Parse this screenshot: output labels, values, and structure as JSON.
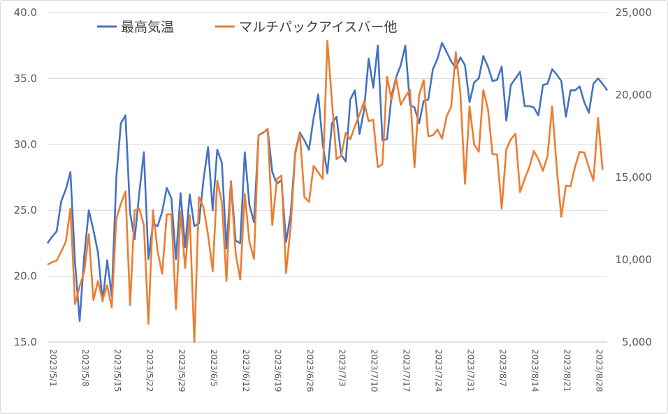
{
  "chart_data": {
    "type": "line",
    "title": "",
    "legend_position": "top",
    "x_dates": [
      "5/1",
      "5/2",
      "5/3",
      "5/4",
      "5/5",
      "5/6",
      "5/7",
      "5/8",
      "5/9",
      "5/10",
      "5/11",
      "5/12",
      "5/13",
      "5/14",
      "5/15",
      "5/16",
      "5/17",
      "5/18",
      "5/19",
      "5/20",
      "5/21",
      "5/22",
      "5/23",
      "5/24",
      "5/25",
      "5/26",
      "5/27",
      "5/28",
      "5/29",
      "5/30",
      "5/31",
      "6/1",
      "6/2",
      "6/3",
      "6/4",
      "6/5",
      "6/6",
      "6/7",
      "6/8",
      "6/9",
      "6/10",
      "6/11",
      "6/12",
      "6/13",
      "6/14",
      "6/15",
      "6/16",
      "6/17",
      "6/18",
      "6/19",
      "6/20",
      "6/21",
      "6/22",
      "6/23",
      "6/24",
      "6/25",
      "6/26",
      "6/27",
      "6/28",
      "6/29",
      "6/30",
      "7/1",
      "7/2",
      "7/3",
      "7/4",
      "7/5",
      "7/6",
      "7/7",
      "7/8",
      "7/9",
      "7/10",
      "7/11",
      "7/12",
      "7/13",
      "7/14",
      "7/15",
      "7/16",
      "7/17",
      "7/18",
      "7/19",
      "7/20",
      "7/21",
      "7/22",
      "7/23",
      "7/24",
      "7/25",
      "7/26",
      "7/27",
      "7/28",
      "7/29",
      "7/30",
      "7/31",
      "8/1",
      "8/2",
      "8/3",
      "8/4",
      "8/5",
      "8/6",
      "8/7",
      "8/8",
      "8/9",
      "8/10",
      "8/11",
      "8/12",
      "8/13",
      "8/14",
      "8/15",
      "8/16",
      "8/17",
      "8/18",
      "8/19",
      "8/20",
      "8/21",
      "8/22",
      "8/23",
      "8/24",
      "8/25",
      "8/26",
      "8/27",
      "8/28",
      "8/29",
      "8/30",
      "8/31"
    ],
    "x_tick_labels": [
      "2023/5/1",
      "2023/5/8",
      "2023/5/15",
      "2023/5/22",
      "2023/5/29",
      "2023/6/5",
      "2023/6/12",
      "2023/6/19",
      "2023/6/26",
      "2023/7/3",
      "2023/7/10",
      "2023/7/17",
      "2023/7/24",
      "2023/7/31",
      "2023/8/7",
      "2023/8/14",
      "2023/8/21",
      "2023/8/28"
    ],
    "x_tick_every": 7,
    "y_left": {
      "min": 15,
      "max": 40,
      "ticks": [
        "15.0",
        "20.0",
        "25.0",
        "30.0",
        "35.0",
        "40.0"
      ]
    },
    "y_right": {
      "min": 5000,
      "max": 25000,
      "ticks": [
        "5,000",
        "10,000",
        "15,000",
        "20,000",
        "25,000"
      ]
    },
    "series": [
      {
        "name": "最高気温",
        "axis": "left",
        "color": "#4472C4",
        "values": [
          22.5,
          23.0,
          23.4,
          25.7,
          26.6,
          27.9,
          21.0,
          16.6,
          21.5,
          25.0,
          23.5,
          21.8,
          18.1,
          21.2,
          18.5,
          27.5,
          31.6,
          32.2,
          24.8,
          22.8,
          26.3,
          29.4,
          21.3,
          24.0,
          23.8,
          24.9,
          26.7,
          25.9,
          21.3,
          26.3,
          22.2,
          26.2,
          23.8,
          24.0,
          27.3,
          29.8,
          25.0,
          29.6,
          28.6,
          22.1,
          27.2,
          22.7,
          22.5,
          29.4,
          25.4,
          24.1,
          30.7,
          30.9,
          31.1,
          27.9,
          27.0,
          27.3,
          22.6,
          24.7,
          29.4,
          30.9,
          30.3,
          29.6,
          32.0,
          33.8,
          30.0,
          27.8,
          31.6,
          32.1,
          29.2,
          28.7,
          33.4,
          34.1,
          30.8,
          32.6,
          36.5,
          34.3,
          37.5,
          30.3,
          30.4,
          33.7,
          35.1,
          36.0,
          37.5,
          33.0,
          32.8,
          31.6,
          33.3,
          33.4,
          35.7,
          36.5,
          37.7,
          37.0,
          36.3,
          35.8,
          36.6,
          36.0,
          33.2,
          34.7,
          35.0,
          36.7,
          35.9,
          34.8,
          34.9,
          35.9,
          31.8,
          34.5,
          35.0,
          35.5,
          32.9,
          32.9,
          32.8,
          32.2,
          34.5,
          34.6,
          35.7,
          35.3,
          34.8,
          32.1,
          34.1,
          34.1,
          34.4,
          33.2,
          32.4,
          34.6,
          35.0,
          34.6,
          34.1
        ]
      },
      {
        "name": "マルチパックアイスバー他",
        "axis": "right",
        "color": "#ED7D31",
        "values": [
          9700,
          9850,
          9950,
          10500,
          11100,
          13100,
          7300,
          8400,
          9250,
          11550,
          7550,
          8700,
          7550,
          8450,
          7100,
          12500,
          13400,
          14150,
          7250,
          13000,
          13100,
          12100,
          6100,
          13000,
          10500,
          9150,
          12750,
          12750,
          7000,
          12900,
          9500,
          12700,
          5000,
          13800,
          13200,
          11500,
          9300,
          14800,
          13500,
          8700,
          14700,
          10400,
          8800,
          14000,
          11100,
          10050,
          17550,
          17700,
          17950,
          12100,
          14900,
          15100,
          9200,
          12000,
          16400,
          17650,
          13800,
          13500,
          15700,
          15300,
          14900,
          23300,
          19600,
          16100,
          16300,
          17700,
          17300,
          18100,
          18800,
          19600,
          18400,
          18500,
          15600,
          15800,
          21100,
          19700,
          21000,
          19400,
          19900,
          20300,
          15600,
          20000,
          20900,
          17500,
          17550,
          17900,
          17350,
          18700,
          19300,
          22600,
          20100,
          14600,
          19300,
          17000,
          16550,
          20300,
          19150,
          16400,
          16400,
          13100,
          16700,
          17300,
          17650,
          14100,
          14900,
          15600,
          16600,
          16100,
          15400,
          16300,
          19300,
          15550,
          12600,
          14500,
          14450,
          15650,
          16550,
          16500,
          15600,
          14800,
          18600,
          15450
        ]
      }
    ]
  }
}
